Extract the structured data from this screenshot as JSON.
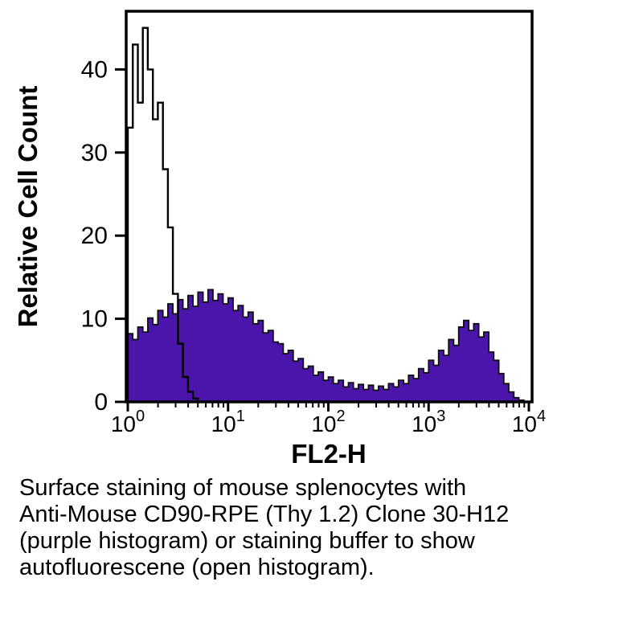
{
  "chart_data": {
    "type": "area",
    "subtype": "flow-cytometry-histogram-overlay",
    "title": "",
    "xlabel": "FL2-H",
    "ylabel": "Relative Cell Count",
    "x_scale": "log10",
    "xlim_log": [
      0,
      4
    ],
    "ylim": [
      0,
      47
    ],
    "grid": false,
    "legend": "none",
    "y_ticks": [
      0,
      10,
      20,
      30,
      40
    ],
    "x_ticks": [
      {
        "base": "10",
        "exp": "0"
      },
      {
        "base": "10",
        "exp": "1"
      },
      {
        "base": "10",
        "exp": "2"
      },
      {
        "base": "10",
        "exp": "3"
      },
      {
        "base": "10",
        "exp": "4"
      }
    ],
    "log_start": 0,
    "log_step": 0.05,
    "series": [
      {
        "name": "Anti-Mouse CD90-RPE (Thy 1.2) Clone 30-H12 (purple histogram)",
        "style": "filled",
        "fill": "#4B14AA",
        "stroke": "#101010",
        "values": [
          8.2,
          7.5,
          9.0,
          8.4,
          10.1,
          9.3,
          11.0,
          10.2,
          11.8,
          10.6,
          12.3,
          11.2,
          12.8,
          11.5,
          13.2,
          12.0,
          13.5,
          12.2,
          13.0,
          11.8,
          12.5,
          11.0,
          11.6,
          10.2,
          10.8,
          9.4,
          9.8,
          8.3,
          8.6,
          7.2,
          7.0,
          5.8,
          6.2,
          4.9,
          5.2,
          4.0,
          4.3,
          3.2,
          3.6,
          2.6,
          3.0,
          2.2,
          2.6,
          1.8,
          2.3,
          1.6,
          2.1,
          1.5,
          2.0,
          1.4,
          1.9,
          1.5,
          2.2,
          1.8,
          2.6,
          2.2,
          3.2,
          2.8,
          4.0,
          3.5,
          5.0,
          4.4,
          6.2,
          5.6,
          7.5,
          6.8,
          9.0,
          9.8,
          8.6,
          9.4,
          7.8,
          8.4,
          6.0,
          5.0,
          3.4,
          2.2,
          1.2,
          0.5,
          0.2,
          0.0
        ]
      },
      {
        "name": "Staining buffer autofluorescence (open histogram)",
        "style": "open",
        "fill": "none",
        "stroke": "#000000",
        "values": [
          33,
          43,
          36,
          45,
          40,
          34,
          36,
          28,
          21,
          13,
          7,
          3,
          1.2,
          0.4,
          0,
          0,
          0,
          0,
          0,
          0,
          0,
          0,
          0,
          0,
          0,
          0,
          0,
          0,
          0,
          0,
          0,
          0,
          0,
          0,
          0,
          0,
          0,
          0,
          0,
          0,
          0,
          0,
          0,
          0,
          0,
          0,
          0,
          0,
          0,
          0,
          0,
          0,
          0,
          0,
          0,
          0,
          0,
          0,
          0,
          0,
          0,
          0,
          0,
          0,
          0,
          0,
          0,
          0,
          0,
          0,
          0,
          0,
          0,
          0,
          0,
          0,
          0,
          0,
          0,
          0
        ]
      }
    ]
  },
  "caption": {
    "lines": [
      "Surface staining of mouse splenocytes with",
      "Anti-Mouse CD90-RPE (Thy 1.2) Clone 30-H12",
      "(purple histogram) or staining buffer to show",
      "autofluorescene (open histogram)."
    ]
  }
}
